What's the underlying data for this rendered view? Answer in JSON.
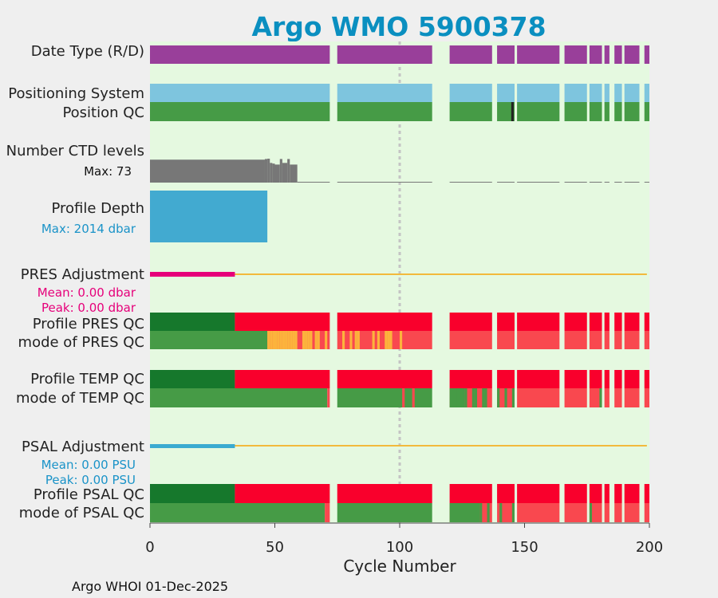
{
  "chart_data": {
    "type": "bar",
    "title": "Argo WMO 5900378",
    "footer": "Argo WHOI 01-Dec-2025",
    "xlabel": "Cycle Number",
    "xlim": [
      0,
      200
    ],
    "xticks": [
      0,
      50,
      100,
      150,
      200
    ],
    "ref_line_x": 100,
    "colors": {
      "title": "#0a8fc0",
      "plot_bg": "#e5f9e0",
      "fig_bg": "#efefef",
      "date_type": "#993f9a",
      "positioning": "#7ec5de",
      "qc_good": "#469b46",
      "qc_good_dark": "#16782c",
      "qc_bad": "#f9002c",
      "qc_bad_light": "#f9484f",
      "qc_prob": "#fcb33c",
      "ctd": "#777777",
      "depth": "#42aad0",
      "pres_adj": "#e6007a",
      "psal_adj": "#3aabd0",
      "zero_line": "#f2ba3c",
      "pos_qc_mark": "#222222"
    },
    "cycle_gaps": [
      [
        72,
        75
      ],
      [
        113,
        120
      ],
      [
        137,
        139
      ],
      [
        146,
        147
      ],
      [
        164,
        166
      ],
      [
        175,
        176
      ],
      [
        181,
        182
      ],
      [
        184,
        186
      ],
      [
        189,
        190
      ],
      [
        196,
        198
      ]
    ],
    "rows": [
      {
        "label": "Date Type (R/D)"
      },
      {
        "label": "Positioning System"
      },
      {
        "label": "Position QC",
        "marks": [
          145
        ]
      },
      {
        "label": "Number CTD levels",
        "stat": "Max: 73",
        "max": 73
      },
      {
        "label": "Profile Depth",
        "stat": "Max: 2014 dbar",
        "max_dbar": 2014
      },
      {
        "label": "PRES Adjustment",
        "mean": "Mean: 0.00 dbar",
        "peak": "Peak: 0.00 dbar",
        "adjusted_cycles": [
          0,
          34
        ]
      },
      {
        "label": "Profile PRES QC",
        "good_until": 34
      },
      {
        "label": "mode of PRES QC",
        "good_until": 47,
        "probable_cycles": [
          47,
          48,
          49,
          50,
          51,
          52,
          53,
          54,
          55,
          56,
          57,
          58,
          61,
          62,
          63,
          64,
          66,
          67,
          70,
          77,
          80,
          82,
          83,
          89,
          91,
          94,
          95,
          96,
          100
        ]
      },
      {
        "label": "Profile TEMP QC",
        "good_until": 34
      },
      {
        "label": "mode of TEMP QC",
        "good_until": 71,
        "bad_cycles": [
          101,
          105
        ],
        "mixed_good_cycles": [
          123,
          126,
          129,
          130,
          133,
          134,
          139,
          142,
          145,
          180
        ]
      },
      {
        "label": "PSAL Adjustment",
        "mean": "Mean: 0.00 PSU",
        "peak": "Peak: 0.00 PSU",
        "adjusted_cycles": [
          0,
          34
        ]
      },
      {
        "label": "Profile PSAL QC",
        "good_until": 34
      },
      {
        "label": "mode of PSAL QC",
        "good_until": 70,
        "mixed_good_cycles": [
          132,
          135,
          140,
          145,
          176
        ]
      }
    ],
    "ctd_levels": [
      {
        "from": 0,
        "to": 46,
        "value": 70
      },
      {
        "from": 46,
        "to": 47,
        "value": 72
      },
      {
        "from": 47,
        "to": 48,
        "value": 73
      },
      {
        "from": 48,
        "to": 49,
        "value": 60
      },
      {
        "from": 49,
        "to": 50,
        "value": 58
      },
      {
        "from": 50,
        "to": 52,
        "value": 55
      },
      {
        "from": 52,
        "to": 53,
        "value": 72
      },
      {
        "from": 53,
        "to": 55,
        "value": 60
      },
      {
        "from": 55,
        "to": 56,
        "value": 72
      },
      {
        "from": 56,
        "to": 59,
        "value": 55
      },
      {
        "from": 59,
        "to": 200,
        "value": 2
      }
    ],
    "profile_depth": [
      {
        "from": 0,
        "to": 47,
        "dbar": 2014
      },
      {
        "from": 0,
        "to": 46,
        "dbar": 1900
      }
    ]
  }
}
